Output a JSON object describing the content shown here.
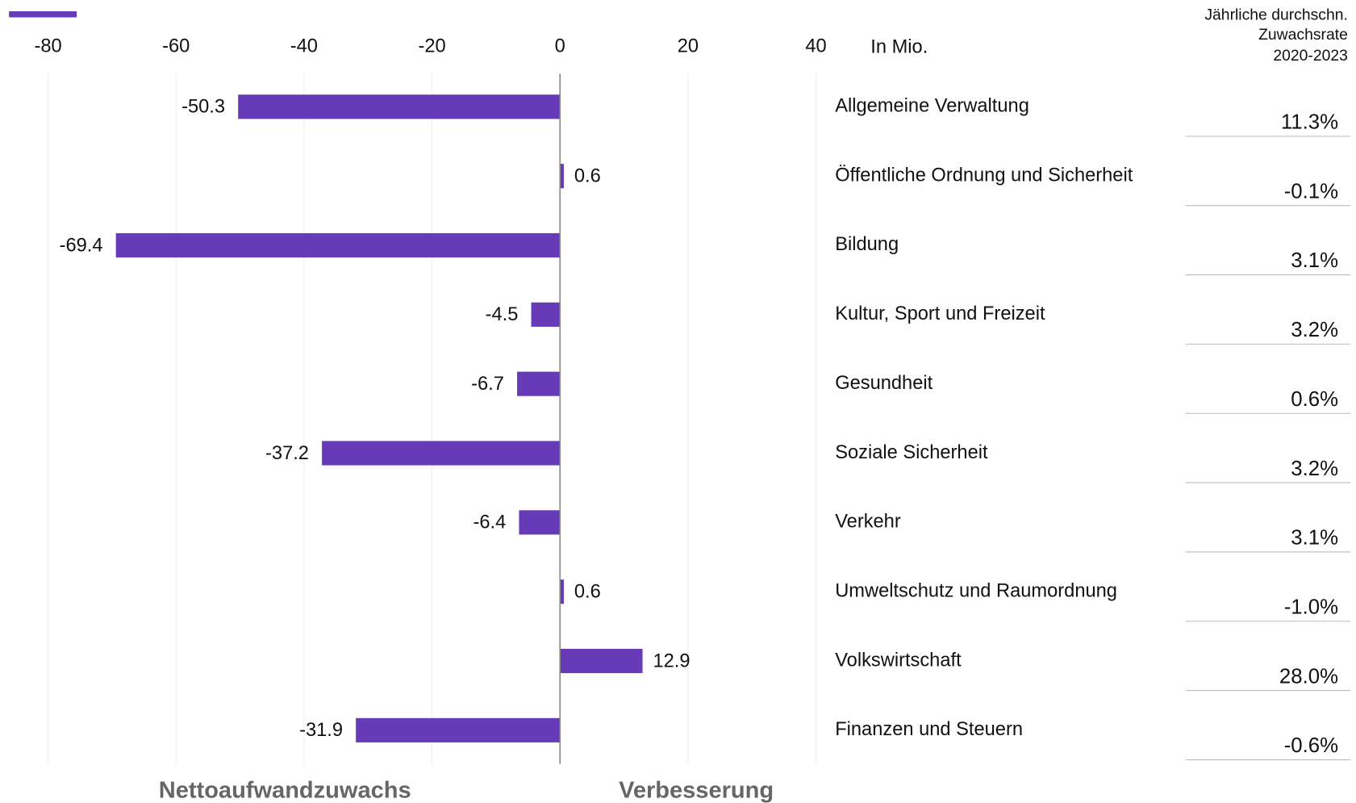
{
  "chart_data": {
    "type": "bar",
    "orientation": "horizontal",
    "axis_unit_label": "In Mio.",
    "categories": [
      "Allgemeine Verwaltung",
      "Öffentliche Ordnung und Sicherheit",
      "Bildung",
      "Kultur, Sport und Freizeit",
      "Gesundheit",
      "Soziale Sicherheit",
      "Verkehr",
      "Umweltschutz und Raumordnung",
      "Volkswirtschaft",
      "Finanzen und Steuern"
    ],
    "values": [
      -50.3,
      0.6,
      -69.4,
      -4.5,
      -6.7,
      -37.2,
      -6.4,
      0.6,
      12.9,
      -31.9
    ],
    "color": "#673ab7",
    "xlim": [
      -80,
      40
    ],
    "xticks": [
      -80,
      -60,
      -40,
      -20,
      0,
      20,
      40
    ],
    "grid": true,
    "growth_header": [
      "Jährliche durchschn.",
      "Zuwachsrate",
      "2020-2023"
    ],
    "growth_labels": [
      "11.3%",
      "-0.1%",
      "3.1%",
      "3.2%",
      "0.6%",
      "3.2%",
      "3.1%",
      "-1.0%",
      "28.0%",
      "-0.6%"
    ],
    "negative_side_label": "Nettoaufwandzuwachs",
    "positive_side_label": "Verbesserung"
  }
}
